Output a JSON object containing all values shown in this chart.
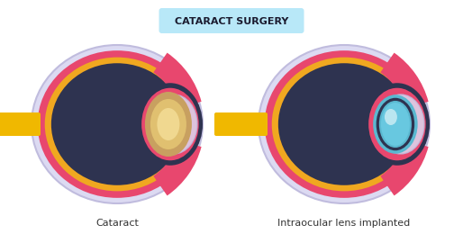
{
  "title": "CATARACT SURGERY",
  "title_bg": "#b8e8f8",
  "label_left": "Cataract",
  "label_right": "Intraocular lens implanted",
  "bg_color": "#ffffff",
  "colors": {
    "sclera_outer": "#dcdaf2",
    "sclera_border": "#c0bcde",
    "choroid": "#e8476e",
    "retina": "#f0a820",
    "vitreous": "#2e3350",
    "optic_nerve": "#f0b800",
    "cataract_outer": "#c8a060",
    "cataract_mid": "#e0c070",
    "cataract_inner": "#f0d890",
    "iol_ring": "#5ab8d0",
    "iol_fill": "#68c8e0",
    "iol_dark": "#2e3350",
    "cornea_bg": "#2e3350",
    "cornea_overlay": "#dcdaf2",
    "pink_wedge": "#e8476e"
  }
}
